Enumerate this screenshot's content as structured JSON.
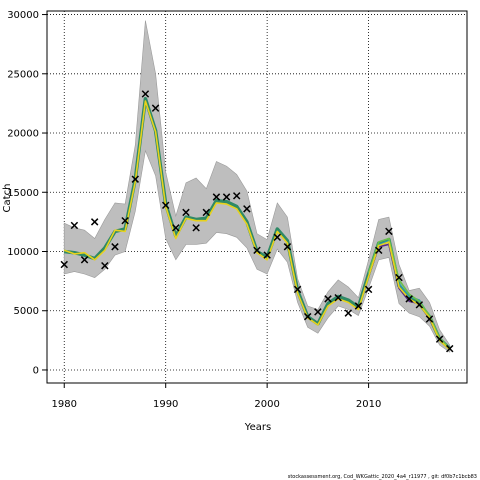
{
  "chart_data": {
    "type": "line",
    "xlabel": "Years",
    "ylabel": "Catch",
    "xlim": [
      1978.3,
      2019.7
    ],
    "ylim": [
      -1100,
      30300
    ],
    "x_ticks": [
      1980,
      1990,
      2000,
      2010
    ],
    "y_ticks": [
      0,
      5000,
      10000,
      15000,
      20000,
      25000,
      30000
    ],
    "grid": true,
    "footer": "stockassessment.org,  Cod_WKGattic_2020_4a4_r11977 ,  git:  df0b7c1bcb83",
    "colors": {
      "band": "#bebebe",
      "median": "#2f8a66",
      "observed_marker": "#000000"
    },
    "band": {
      "x": [
        1980,
        1981,
        1982,
        1983,
        1984,
        1985,
        1986,
        1987,
        1988,
        1989,
        1990,
        1991,
        1992,
        1993,
        1994,
        1995,
        1996,
        1997,
        1998,
        1999,
        2000,
        2001,
        2002,
        2003,
        2004,
        2005,
        2006,
        2007,
        2008,
        2009,
        2010,
        2011,
        2012,
        2013,
        2014,
        2015,
        2016,
        2017,
        2018
      ],
      "upper": [
        12400,
        12000,
        11800,
        11100,
        12700,
        14100,
        14000,
        19000,
        29500,
        25000,
        16700,
        13000,
        15800,
        16200,
        15300,
        17600,
        17200,
        16500,
        15100,
        11500,
        11000,
        14100,
        12900,
        7700,
        5400,
        5100,
        6600,
        7600,
        7000,
        6100,
        9300,
        12700,
        12900,
        8900,
        6700,
        6900,
        5700,
        3400,
        2100
      ],
      "lower": [
        8100,
        8300,
        8100,
        7800,
        8500,
        9700,
        10000,
        13400,
        18500,
        16400,
        11100,
        9300,
        10600,
        10600,
        10700,
        11600,
        11500,
        11200,
        10300,
        8500,
        8100,
        10200,
        9100,
        5700,
        3600,
        3100,
        4400,
        5400,
        5100,
        4600,
        6900,
        9300,
        9500,
        5600,
        4800,
        4500,
        3700,
        2100,
        1500
      ]
    },
    "series": [
      {
        "color": "#2f8a66",
        "x": [
          1980,
          1981,
          1982,
          1983,
          1984,
          1985,
          1986,
          1987,
          1988,
          1989,
          1990,
          1991,
          1992,
          1993,
          1994,
          1995,
          1996,
          1997,
          1998,
          1999,
          2000,
          2001,
          2002,
          2003,
          2004,
          2005,
          2006,
          2007,
          2008,
          2009,
          2010,
          2011,
          2012,
          2013,
          2014,
          2015,
          2016,
          2017,
          2018
        ],
        "y": [
          10000,
          9900,
          9700,
          9400,
          10300,
          11700,
          11900,
          16100,
          22900,
          20200,
          14000,
          11300,
          12900,
          12700,
          12800,
          14300,
          14200,
          13800,
          12500,
          10000,
          9500,
          11900,
          10900,
          6700,
          4500,
          3900,
          5600,
          6200,
          5900,
          5300,
          8100,
          10700,
          11000,
          7100,
          6100,
          5600,
          4500,
          2600,
          1800
        ]
      },
      {
        "color": "#5a2a86",
        "x": [
          2010,
          2011,
          2012,
          2013,
          2014,
          2015,
          2016,
          2017,
          2018
        ],
        "y": [
          7900,
          10400,
          10600,
          6900,
          5800,
          5600,
          4300,
          2600,
          1800
        ]
      },
      {
        "color": "#2b9aa8",
        "x": [
          2010,
          2011,
          2012,
          2013,
          2014,
          2015,
          2016,
          2017,
          2018
        ],
        "y": [
          8100,
          10600,
          10900,
          7300,
          6200,
          5900,
          4500,
          2700,
          1800
        ]
      },
      {
        "color": "#6bc04b",
        "x": [
          2010,
          2011,
          2012,
          2013,
          2014,
          2015,
          2016,
          2017,
          2018
        ],
        "y": [
          8200,
          10800,
          11100,
          7600,
          6400,
          5800,
          4600,
          2700,
          1800
        ]
      },
      {
        "color": "#e8d21c",
        "x": [
          1980,
          1981,
          1982,
          1983,
          1984,
          1985,
          1986,
          1987,
          1988,
          1989,
          1990,
          1991,
          1992,
          1993,
          1994,
          1995,
          1996,
          1997,
          1998,
          1999,
          2000,
          2001,
          2002,
          2003,
          2004,
          2005,
          2006,
          2007,
          2008,
          2009,
          2010,
          2011,
          2012,
          2013,
          2014,
          2015,
          2016,
          2017,
          2018
        ],
        "y": [
          10100,
          9800,
          9900,
          9300,
          10100,
          11800,
          11700,
          15900,
          22700,
          20100,
          13800,
          11100,
          12800,
          12600,
          12600,
          14100,
          14000,
          13600,
          12300,
          9900,
          9300,
          11700,
          10700,
          6500,
          4400,
          3800,
          5400,
          6000,
          5700,
          5100,
          7900,
          10500,
          10800,
          7000,
          6000,
          5500,
          4400,
          2500,
          1700
        ]
      }
    ],
    "observed": {
      "marker": "x",
      "x": [
        1980,
        1981,
        1982,
        1983,
        1984,
        1985,
        1986,
        1987,
        1988,
        1989,
        1990,
        1991,
        1992,
        1993,
        1994,
        1995,
        1996,
        1997,
        1998,
        1999,
        2000,
        2001,
        2002,
        2003,
        2004,
        2005,
        2006,
        2007,
        2008,
        2009,
        2010,
        2011,
        2012,
        2013,
        2014,
        2015,
        2016,
        2017,
        2018
      ],
      "y": [
        8900,
        12200,
        9300,
        12500,
        8800,
        10400,
        12600,
        16100,
        23300,
        22100,
        13900,
        12000,
        13300,
        12000,
        13300,
        14600,
        14600,
        14700,
        13600,
        10100,
        9700,
        11200,
        10400,
        6800,
        4500,
        4900,
        6000,
        6100,
        4800,
        5400,
        6800,
        10100,
        11700,
        7800,
        6000,
        5500,
        4300,
        2600,
        1800
      ]
    }
  }
}
